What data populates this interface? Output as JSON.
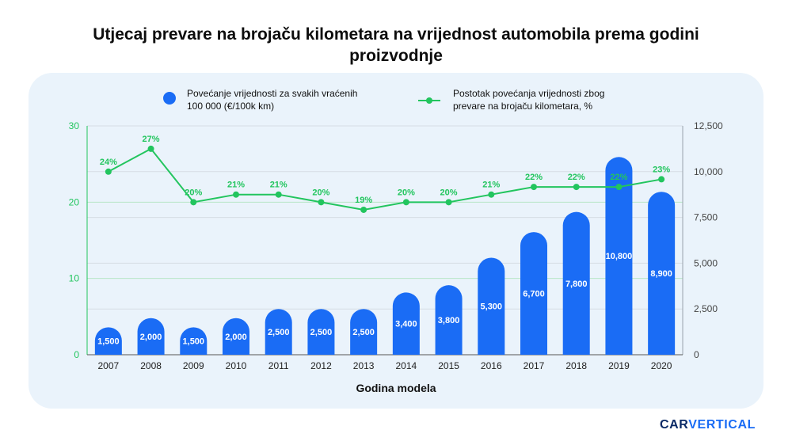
{
  "title": "Utjecaj prevare na brojaču kilometara na vrijednost automobila prema godini proizvodnje",
  "logo": {
    "part1": "CAR",
    "part2": "VERTICAL"
  },
  "colors": {
    "bar": "#1a6cf5",
    "line": "#22c55e",
    "axis_left": "#22c55e",
    "axis_right": "#444444",
    "panel": "#eaf3fb"
  },
  "chart_data": {
    "type": "bar",
    "xlabel": "Godina modela",
    "categories": [
      "2007",
      "2008",
      "2009",
      "2010",
      "2011",
      "2012",
      "2013",
      "2014",
      "2015",
      "2016",
      "2017",
      "2018",
      "2019",
      "2020"
    ],
    "series": [
      {
        "name": "Povećanje vrijednosti za svakih vraćenih 100 000 (€/100k km)",
        "type": "bar",
        "axis": "right",
        "values": [
          1500,
          2000,
          1500,
          2000,
          2500,
          2500,
          2500,
          3400,
          3800,
          5300,
          6700,
          7800,
          10800,
          8900
        ],
        "labels": [
          "1,500",
          "2,000",
          "1,500",
          "2,000",
          "2,500",
          "2,500",
          "2,500",
          "3,400",
          "3,800",
          "5,300",
          "6,700",
          "7,800",
          "10,800",
          "8,900"
        ]
      },
      {
        "name": "Postotak povećanja vrijednosti zbog prevare na brojaču kilometara, %",
        "type": "line",
        "axis": "left",
        "values": [
          24,
          27,
          20,
          21,
          21,
          20,
          19,
          20,
          20,
          21,
          22,
          22,
          22,
          23
        ],
        "labels": [
          "24%",
          "27%",
          "20%",
          "21%",
          "21%",
          "20%",
          "19%",
          "20%",
          "20%",
          "21%",
          "22%",
          "22%",
          "22%",
          "23%"
        ]
      }
    ],
    "y_left": {
      "lim": [
        0,
        30
      ],
      "ticks": [
        0,
        10,
        20,
        30
      ],
      "tick_labels": [
        "0",
        "10",
        "20",
        "30"
      ]
    },
    "y_right": {
      "lim": [
        0,
        12500
      ],
      "ticks": [
        0,
        2500,
        5000,
        7500,
        10000,
        12500
      ],
      "tick_labels": [
        "0",
        "2,500",
        "5,000",
        "7,500",
        "10,000",
        "12,500"
      ]
    },
    "legend": {
      "bar_label_line1": "Povećanje vrijednosti za svakih vraćenih",
      "bar_label_line2": "100 000 (€/100k km)",
      "line_label_line1": "Postotak povećanja vrijednosti zbog",
      "line_label_line2": "prevare na brojaču kilometara, %",
      "position": "top-center"
    },
    "grid": true
  }
}
